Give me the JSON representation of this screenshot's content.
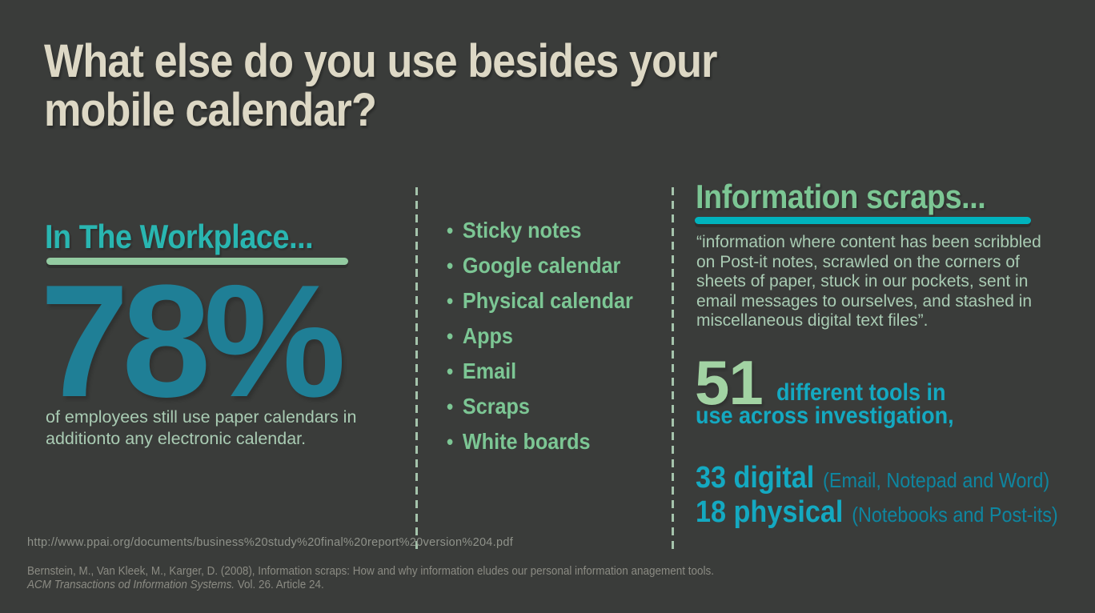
{
  "colors": {
    "background": "#3a3c3a",
    "title_cream": "#ddd8c5",
    "teal_heading": "#29b6b1",
    "big_stat_teal": "#1f7f96",
    "pale_green_text": "#a9cbb3",
    "list_green": "#7cc694",
    "underline_green": "#93cba1",
    "underline_cyan": "#00b3bd",
    "cyan_text": "#14a9c1",
    "cyan_note": "#0e86a0",
    "stat51_green": "#a2d3a3",
    "footer_gray": "#8b8b83",
    "divider_dash": "#a5c4ac"
  },
  "title": {
    "line1": "What else do you use besides your",
    "line2": "mobile calendar?"
  },
  "workplace": {
    "heading": "In The Workplace...",
    "stat": "78%",
    "caption_line1": "of employees still use paper calendars in",
    "caption_line2": "additionto any electronic calendar."
  },
  "tools_list": {
    "items": [
      "Sticky notes",
      "Google calendar",
      "Physical calendar",
      "Apps",
      "Email",
      "Scraps",
      "White boards"
    ]
  },
  "info_scraps": {
    "heading": "Information scraps...",
    "quote": "“information where content has been scribbled on Post-it notes, scrawled on the corners of sheets of paper, stuck in our pockets, sent in email messages to ourselves, and stashed in miscellaneous digital text files”.",
    "stat_total": "51",
    "stat_total_label_line1": "different tools in",
    "stat_total_label_line2": "use across investigation,",
    "digital_stat": "33 digital",
    "digital_note": "(Email, Notepad and Word)",
    "physical_stat": "18 physical",
    "physical_note": "(Notebooks and Post-its)"
  },
  "footer": {
    "source_url": "http://www.ppai.org/documents/business%20study%20final%20report%20version%204.pdf",
    "citation_line1": "Bernstein, M., Van Kleek, M., Karger, D. (2008), Information scraps: How and why information eludes our personal information anagement tools.",
    "citation_line2_italic": "ACM  Transactions od Information Systems.",
    "citation_line2_rest": " Vol. 26. Article 24."
  }
}
